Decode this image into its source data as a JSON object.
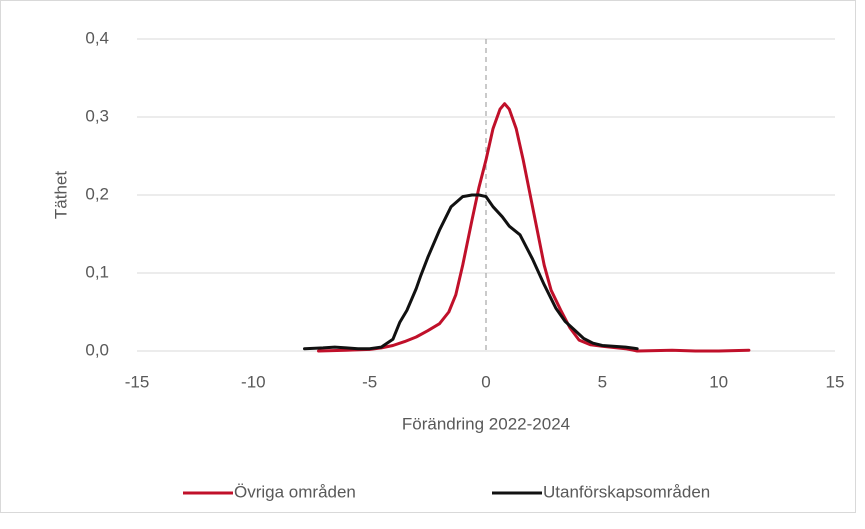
{
  "chart_data": {
    "type": "line",
    "xlabel": "Förändring 2022-2024",
    "ylabel": "Täthet",
    "xlim": [
      -15,
      15
    ],
    "xticks": [
      -15,
      -10,
      -5,
      0,
      5,
      10,
      15
    ],
    "ylim": [
      0,
      0.4
    ],
    "yticks": [
      {
        "value": 0,
        "label": "0,0"
      },
      {
        "value": 0.1,
        "label": "0,1"
      },
      {
        "value": 0.2,
        "label": "0,2"
      },
      {
        "value": 0.3,
        "label": "0,3"
      },
      {
        "value": 0.4,
        "label": "0,4"
      }
    ],
    "grid": true,
    "reference_line_x": 0,
    "legend": "bottom",
    "series": [
      {
        "name": "Övriga områden",
        "color": "#c0102a",
        "x": [
          -7.2,
          -6,
          -5,
          -4.5,
          -4,
          -3.5,
          -3,
          -2.5,
          -2,
          -1.6,
          -1.3,
          -1,
          -0.6,
          -0.3,
          0,
          0.3,
          0.6,
          0.8,
          1.0,
          1.3,
          1.6,
          1.9,
          2.2,
          2.5,
          2.8,
          3.2,
          3.6,
          4.0,
          4.5,
          5,
          6,
          6.5,
          8,
          9,
          10,
          11.3
        ],
        "values": [
          0,
          0.001,
          0.002,
          0.004,
          0.007,
          0.012,
          0.018,
          0.026,
          0.035,
          0.05,
          0.072,
          0.11,
          0.168,
          0.21,
          0.245,
          0.285,
          0.31,
          0.317,
          0.31,
          0.285,
          0.245,
          0.2,
          0.155,
          0.11,
          0.078,
          0.053,
          0.03,
          0.014,
          0.008,
          0.006,
          0.003,
          0,
          0.001,
          0,
          0,
          0.001
        ]
      },
      {
        "name": "Utanförskapsområden",
        "color": "#111111",
        "x": [
          -7.8,
          -7,
          -6.5,
          -6,
          -5.5,
          -5,
          -4.5,
          -4,
          -3.7,
          -3.4,
          -3,
          -2.8,
          -2.5,
          -2,
          -1.5,
          -1,
          -0.6,
          -0.3,
          0,
          0.3,
          0.7,
          1.0,
          1.46,
          2.0,
          2.5,
          3.0,
          3.4,
          3.8,
          4.2,
          4.6,
          5,
          6,
          6.5
        ],
        "values": [
          0.003,
          0.004,
          0.005,
          0.004,
          0.003,
          0.003,
          0.005,
          0.015,
          0.037,
          0.052,
          0.08,
          0.097,
          0.12,
          0.155,
          0.185,
          0.198,
          0.2,
          0.2,
          0.198,
          0.185,
          0.172,
          0.16,
          0.149,
          0.118,
          0.085,
          0.055,
          0.038,
          0.027,
          0.016,
          0.01,
          0.007,
          0.005,
          0.003
        ]
      }
    ]
  }
}
